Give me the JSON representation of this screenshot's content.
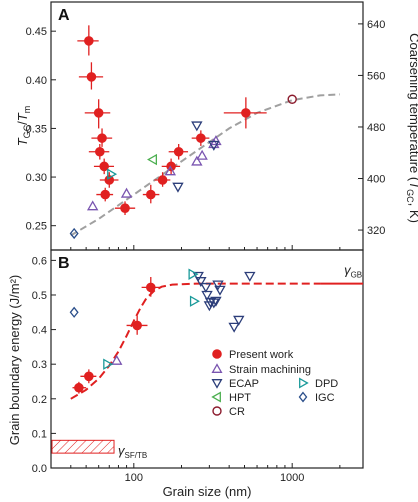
{
  "colors": {
    "present": "#e02020",
    "strain": "#7a55b0",
    "ecap": "#2c3e7a",
    "hpt": "#4caf50",
    "cr": "#8b1a2c",
    "dpd": "#1a9a9a",
    "igc": "#2a4e8a",
    "fit": "#a0a0a0",
    "gb_line": "#e02020"
  },
  "chart_data": [
    {
      "panel": "A",
      "type": "scatter",
      "xscale": "log",
      "xlim": [
        30,
        2800
      ],
      "ylim": [
        0.225,
        0.48
      ],
      "ylabel": "T_GC/T_m",
      "yticks": [
        "0.25",
        "0.30",
        "0.35",
        "0.40",
        "0.45"
      ],
      "yticks_vals": [
        0.25,
        0.3,
        0.35,
        0.4,
        0.45
      ],
      "right_axis": {
        "label": "Coarsening temperature (T_GC, K)",
        "ticks": [
          "320",
          "400",
          "480",
          "560",
          "640"
        ],
        "ticks_pos": [
          0.2455,
          0.2985,
          0.3515,
          0.4045,
          0.4575
        ]
      },
      "series": [
        {
          "key": "present",
          "points": [
            {
              "x": 52,
              "y": 0.44,
              "xerr": [
                44,
                60
              ],
              "yerr": [
                0.425,
                0.456
              ]
            },
            {
              "x": 54,
              "y": 0.403,
              "xerr": [
                45,
                64
              ],
              "yerr": [
                0.39,
                0.418
              ]
            },
            {
              "x": 60,
              "y": 0.366,
              "xerr": [
                49,
                71
              ],
              "yerr": [
                0.35,
                0.38
              ]
            },
            {
              "x": 63,
              "y": 0.34,
              "xerr": [
                54,
                73
              ],
              "yerr": [
                0.331,
                0.35
              ]
            },
            {
              "x": 61,
              "y": 0.326,
              "xerr": [
                52,
                70
              ],
              "yerr": [
                0.318,
                0.334
              ]
            },
            {
              "x": 65,
              "y": 0.311,
              "xerr": [
                56,
                75
              ],
              "yerr": [
                0.303,
                0.319
              ]
            },
            {
              "x": 70,
              "y": 0.297,
              "xerr": [
                61,
                80
              ],
              "yerr": [
                0.289,
                0.305
              ]
            },
            {
              "x": 66,
              "y": 0.282,
              "xerr": [
                58,
                74
              ],
              "yerr": [
                0.275,
                0.289
              ]
            },
            {
              "x": 88,
              "y": 0.268,
              "xerr": [
                76,
                102
              ],
              "yerr": [
                0.261,
                0.275
              ]
            },
            {
              "x": 128,
              "y": 0.282,
              "xerr": [
                114,
                145
              ],
              "yerr": [
                0.273,
                0.292
              ]
            },
            {
              "x": 152,
              "y": 0.297,
              "xerr": [
                135,
                170
              ],
              "yerr": [
                0.29,
                0.305
              ]
            },
            {
              "x": 172,
              "y": 0.311,
              "xerr": [
                150,
                196
              ],
              "yerr": [
                0.303,
                0.319
              ]
            },
            {
              "x": 192,
              "y": 0.326,
              "xerr": [
                166,
                220
              ],
              "yerr": [
                0.318,
                0.334
              ]
            },
            {
              "x": 265,
              "y": 0.34,
              "xerr": [
                232,
                300
              ],
              "yerr": [
                0.332,
                0.348
              ]
            },
            {
              "x": 510,
              "y": 0.366,
              "xerr": [
                370,
                690
              ],
              "yerr": [
                0.35,
                0.382
              ]
            }
          ]
        },
        {
          "key": "strain",
          "marker": "triangle-up",
          "points": [
            {
              "x": 55,
              "y": 0.27
            },
            {
              "x": 90,
              "y": 0.283
            },
            {
              "x": 170,
              "y": 0.306
            },
            {
              "x": 250,
              "y": 0.316
            },
            {
              "x": 270,
              "y": 0.322
            },
            {
              "x": 320,
              "y": 0.334
            },
            {
              "x": 330,
              "y": 0.337
            }
          ]
        },
        {
          "key": "ecap",
          "marker": "triangle-down",
          "points": [
            {
              "x": 190,
              "y": 0.29
            },
            {
              "x": 320,
              "y": 0.333
            },
            {
              "x": 250,
              "y": 0.353
            }
          ]
        },
        {
          "key": "dpd",
          "marker": "triangle-right",
          "points": [
            {
              "x": 72,
              "y": 0.303
            }
          ]
        },
        {
          "key": "hpt",
          "marker": "triangle-left",
          "points": [
            {
              "x": 132,
              "y": 0.318
            }
          ]
        },
        {
          "key": "igc",
          "marker": "diamond",
          "points": [
            {
              "x": 42,
              "y": 0.242
            }
          ]
        },
        {
          "key": "cr",
          "marker": "circle",
          "points": [
            {
              "x": 1000,
              "y": 0.38
            }
          ]
        }
      ],
      "fit": [
        {
          "x": 40,
          "y": 0.24
        },
        {
          "x": 60,
          "y": 0.257
        },
        {
          "x": 100,
          "y": 0.282
        },
        {
          "x": 150,
          "y": 0.302
        },
        {
          "x": 250,
          "y": 0.327
        },
        {
          "x": 400,
          "y": 0.35
        },
        {
          "x": 600,
          "y": 0.366
        },
        {
          "x": 1000,
          "y": 0.379
        },
        {
          "x": 1500,
          "y": 0.384
        },
        {
          "x": 2000,
          "y": 0.385
        }
      ]
    },
    {
      "panel": "B",
      "type": "scatter",
      "xscale": "log",
      "xlim": [
        30,
        2800
      ],
      "ylim": [
        0.0,
        0.63
      ],
      "xlabel": "Grain size (nm)",
      "ylabel": "Grain boundary energy (J/m²)",
      "xticks": [
        "100",
        "1000"
      ],
      "xticks_vals": [
        100,
        1000
      ],
      "yticks": [
        "0.0",
        "0.1",
        "0.2",
        "0.3",
        "0.4",
        "0.5",
        "0.6"
      ],
      "yticks_vals": [
        0.0,
        0.1,
        0.2,
        0.3,
        0.4,
        0.5,
        0.6
      ],
      "series": [
        {
          "key": "present",
          "points": [
            {
              "x": 45,
              "y": 0.232,
              "xerr": [
                41,
                50
              ],
              "yerr": [
                0.215,
                0.249
              ]
            },
            {
              "x": 52,
              "y": 0.265,
              "xerr": [
                46,
                58
              ],
              "yerr": [
                0.245,
                0.285
              ]
            },
            {
              "x": 105,
              "y": 0.412,
              "xerr": [
                90,
                122
              ],
              "yerr": [
                0.385,
                0.44
              ]
            },
            {
              "x": 128,
              "y": 0.522,
              "xerr": [
                112,
                145
              ],
              "yerr": [
                0.495,
                0.552
              ]
            }
          ]
        },
        {
          "key": "strain",
          "marker": "triangle-up",
          "points": [
            {
              "x": 78,
              "y": 0.31
            }
          ]
        },
        {
          "key": "ecap",
          "marker": "triangle-down",
          "points": [
            {
              "x": 255,
              "y": 0.555
            },
            {
              "x": 265,
              "y": 0.54
            },
            {
              "x": 285,
              "y": 0.523
            },
            {
              "x": 305,
              "y": 0.48
            },
            {
              "x": 320,
              "y": 0.478
            },
            {
              "x": 330,
              "y": 0.483
            },
            {
              "x": 350,
              "y": 0.515
            },
            {
              "x": 340,
              "y": 0.53
            },
            {
              "x": 300,
              "y": 0.47
            },
            {
              "x": 430,
              "y": 0.408
            },
            {
              "x": 460,
              "y": 0.428
            },
            {
              "x": 540,
              "y": 0.555
            },
            {
              "x": 290,
              "y": 0.5
            }
          ]
        },
        {
          "key": "dpd",
          "marker": "triangle-right",
          "points": [
            {
              "x": 235,
              "y": 0.56
            },
            {
              "x": 240,
              "y": 0.482
            },
            {
              "x": 68,
              "y": 0.3
            }
          ]
        },
        {
          "key": "igc",
          "marker": "diamond",
          "points": [
            {
              "x": 42,
              "y": 0.45
            }
          ]
        }
      ],
      "fit": [
        {
          "x": 40,
          "y": 0.2
        },
        {
          "x": 50,
          "y": 0.226
        },
        {
          "x": 60,
          "y": 0.258
        },
        {
          "x": 70,
          "y": 0.296
        },
        {
          "x": 80,
          "y": 0.337
        },
        {
          "x": 90,
          "y": 0.382
        },
        {
          "x": 100,
          "y": 0.425
        },
        {
          "x": 110,
          "y": 0.462
        },
        {
          "x": 120,
          "y": 0.49
        },
        {
          "x": 135,
          "y": 0.513
        },
        {
          "x": 150,
          "y": 0.524
        },
        {
          "x": 175,
          "y": 0.53
        },
        {
          "x": 250,
          "y": 0.533
        },
        {
          "x": 600,
          "y": 0.533
        },
        {
          "x": 1500,
          "y": 0.533
        }
      ],
      "gb_line": {
        "y": 0.533,
        "x_start": 1500,
        "label": "γ",
        "label_sub": "GB"
      },
      "sf_box": {
        "x_start": 30,
        "x_end": 75,
        "y_low": 0.043,
        "y_high": 0.08,
        "label": "γ",
        "label_sub": "SF/TB"
      }
    }
  ],
  "legend": [
    {
      "key": "present",
      "marker": "circle-filled",
      "label": "Present work"
    },
    {
      "key": "strain",
      "marker": "triangle-up",
      "label": "Strain machining"
    },
    {
      "key": "ecap",
      "marker": "triangle-down",
      "label": "ECAP"
    },
    {
      "key": "dpd",
      "marker": "triangle-right",
      "label": "DPD"
    },
    {
      "key": "hpt",
      "marker": "triangle-left",
      "label": "HPT"
    },
    {
      "key": "igc",
      "marker": "diamond",
      "label": "IGC"
    },
    {
      "key": "cr",
      "marker": "circle",
      "label": "CR"
    }
  ]
}
